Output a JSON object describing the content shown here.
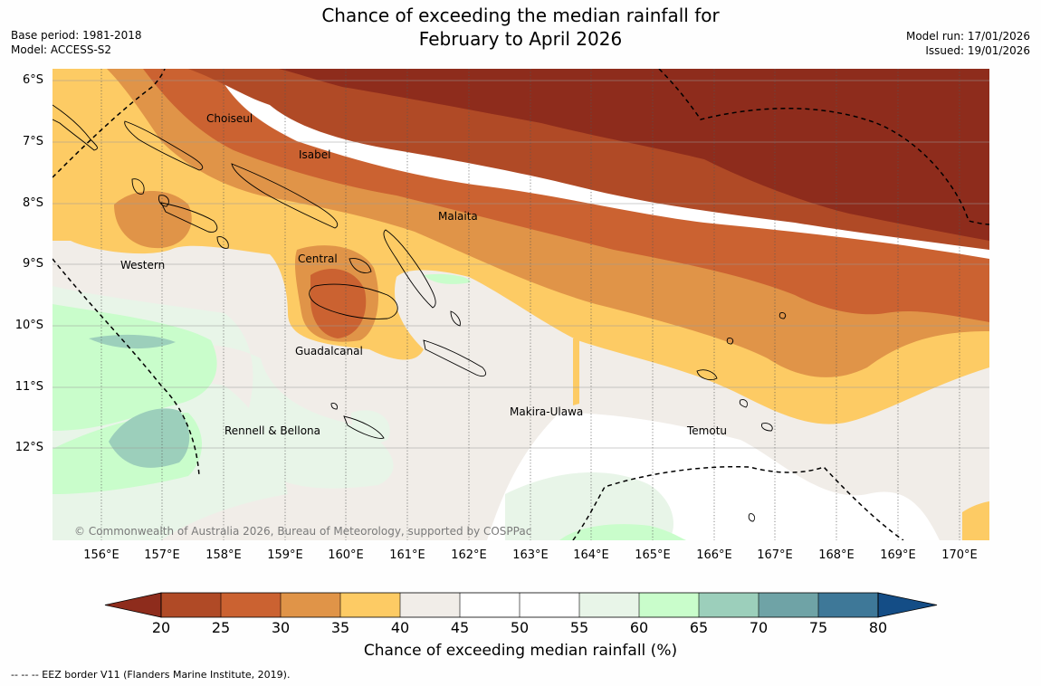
{
  "header": {
    "title_line1": "Chance of exceeding the median rainfall for",
    "title_line2": "February to April 2026",
    "base_period": "Base period: 1981-2018",
    "model": "Model: ACCESS-S2",
    "model_run": "Model run: 17/01/2026",
    "issued": "Issued: 19/01/2026"
  },
  "map": {
    "lat_labels": [
      "6°S",
      "7°S",
      "8°S",
      "9°S",
      "10°S",
      "11°S",
      "12°S"
    ],
    "lon_labels": [
      "156°E",
      "157°E",
      "158°E",
      "159°E",
      "160°E",
      "161°E",
      "162°E",
      "163°E",
      "164°E",
      "165°E",
      "166°E",
      "167°E",
      "168°E",
      "169°E",
      "170°E"
    ],
    "regions": {
      "choiseul": "Choiseul",
      "isabel": "Isabel",
      "malaita": "Malaita",
      "central": "Central",
      "western": "Western",
      "guadalcanal": "Guadalcanal",
      "makira": "Makira-Ulawa",
      "rennell": "Rennell & Bellona",
      "temotu": "Temotu"
    },
    "copyright": "© Commonwealth of Australia 2026, Bureau of Meteorology, supported by COSPPac"
  },
  "colorbar": {
    "ticks": [
      "20",
      "25",
      "30",
      "35",
      "40",
      "45",
      "50",
      "55",
      "60",
      "65",
      "70",
      "75",
      "80"
    ],
    "colors": {
      "below_20": "#8e2c1c",
      "c20_25": "#b04a26",
      "c25_30": "#cb6231",
      "c30_35": "#e09448",
      "c35_40": "#fdcb64",
      "c40_45": "#f1ede8",
      "c45_50": "#ffffff",
      "c50_55": "#ffffff",
      "c55_60": "#e8f5e8",
      "c60_65": "#c9fdcb",
      "c65_70": "#9ccfbb",
      "c70_75": "#6fa3a6",
      "c75_80": "#3e7898",
      "above_80": "#144d86"
    },
    "title": "Chance of exceeding median rainfall (%)"
  },
  "footnote": "-- -- -- EEZ border V11 (Flanders Marine Institute, 2019)."
}
